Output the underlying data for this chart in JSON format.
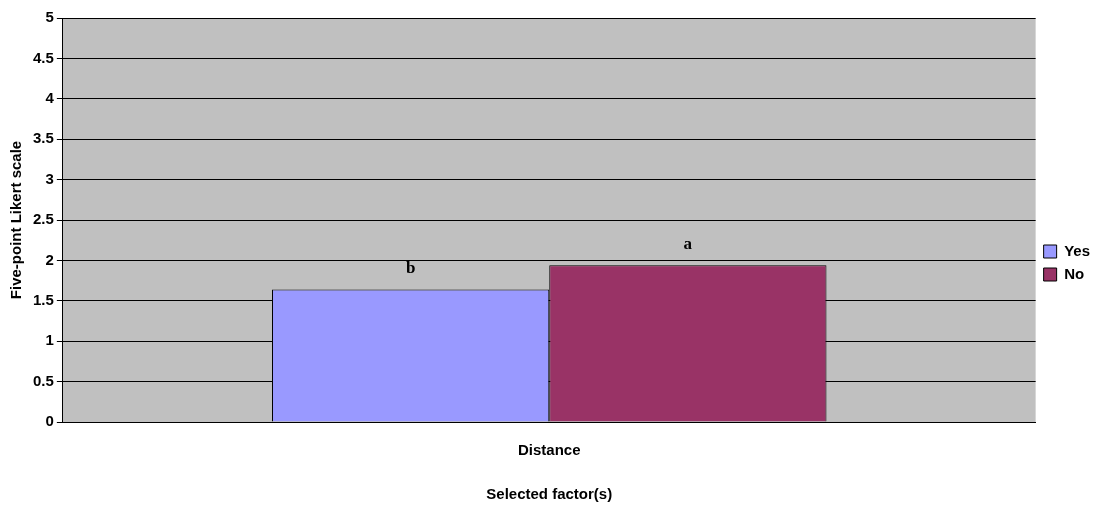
{
  "chart_data": {
    "type": "bar",
    "xlabel": "Selected factor(s)",
    "ylabel": "Five-point Likert scale",
    "categories": [
      "Distance"
    ],
    "series": [
      {
        "name": "Yes",
        "color": "#9999ff",
        "values": [
          1.64
        ],
        "value_labels": [
          "b"
        ]
      },
      {
        "name": "No",
        "color": "#993366",
        "values": [
          1.94
        ],
        "value_labels": [
          "a"
        ]
      }
    ],
    "ylim": [
      0,
      5
    ],
    "yticks": [
      0,
      0.5,
      1,
      1.5,
      2,
      2.5,
      3,
      3.5,
      4,
      4.5,
      5
    ],
    "grid": "y",
    "legend": "right"
  }
}
